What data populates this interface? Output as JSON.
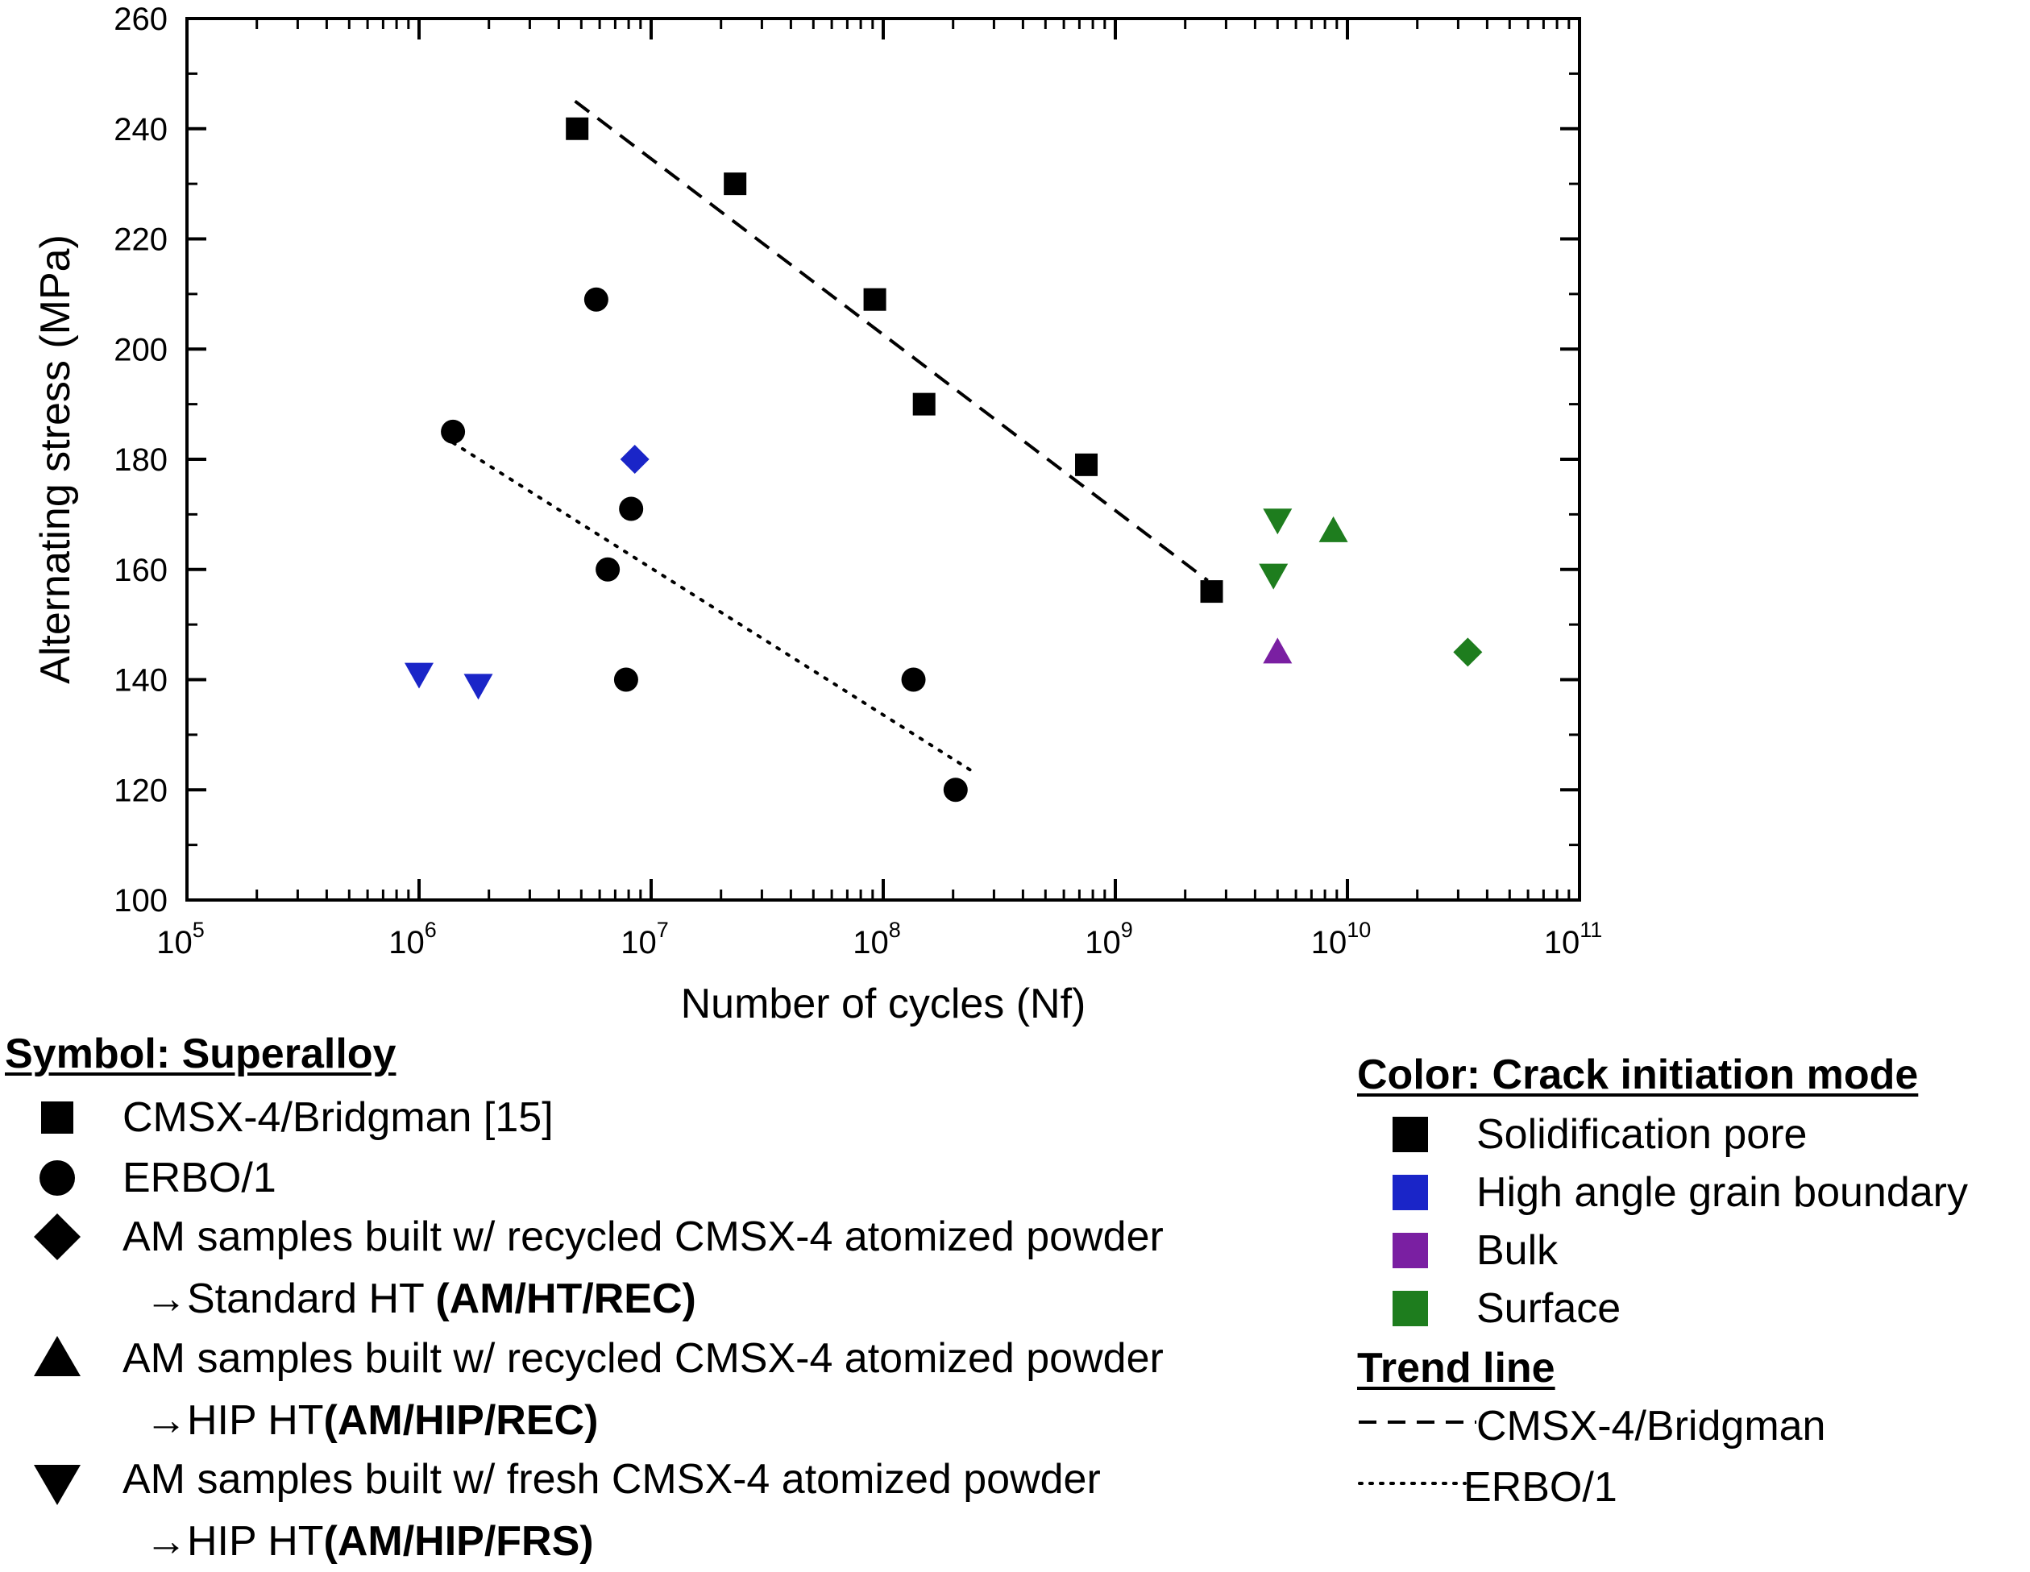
{
  "chart_data": {
    "type": "scatter",
    "xlabel": "Number of cycles (Nf)",
    "ylabel": "Alternating stress (MPa)",
    "xscale": "log",
    "xlim": [
      100000,
      100000000000
    ],
    "ylim": [
      100,
      260
    ],
    "x_tick_exponents": [
      5,
      6,
      7,
      8,
      9,
      10,
      11
    ],
    "x_tick_base": "10",
    "y_ticks": [
      100,
      120,
      140,
      160,
      180,
      200,
      220,
      240,
      260
    ],
    "grid": false,
    "colors": {
      "solidification_pore": "#000000",
      "high_angle_grain_boundary": "#1a25c8",
      "bulk": "#7a1fa2",
      "surface": "#1e7d1e"
    },
    "series": [
      {
        "name": "CMSX-4/Bridgman [15]",
        "marker": "square",
        "points": [
          {
            "x": 4800000,
            "y": 240,
            "mode": "solidification_pore"
          },
          {
            "x": 23000000,
            "y": 230,
            "mode": "solidification_pore"
          },
          {
            "x": 92000000,
            "y": 209,
            "mode": "solidification_pore"
          },
          {
            "x": 150000000,
            "y": 190,
            "mode": "solidification_pore"
          },
          {
            "x": 750000000,
            "y": 179,
            "mode": "solidification_pore"
          },
          {
            "x": 2600000000,
            "y": 156,
            "mode": "solidification_pore"
          }
        ]
      },
      {
        "name": "ERBO/1",
        "marker": "circle",
        "points": [
          {
            "x": 1400000,
            "y": 185,
            "mode": "solidification_pore"
          },
          {
            "x": 5800000,
            "y": 209,
            "mode": "solidification_pore"
          },
          {
            "x": 8200000,
            "y": 171,
            "mode": "solidification_pore"
          },
          {
            "x": 6500000,
            "y": 160,
            "mode": "solidification_pore"
          },
          {
            "x": 7800000,
            "y": 140,
            "mode": "solidification_pore"
          },
          {
            "x": 135000000,
            "y": 140,
            "mode": "solidification_pore"
          },
          {
            "x": 205000000,
            "y": 120,
            "mode": "solidification_pore"
          }
        ]
      },
      {
        "name": "AM/HT/REC",
        "marker": "diamond",
        "points": [
          {
            "x": 8500000,
            "y": 180,
            "mode": "high_angle_grain_boundary"
          },
          {
            "x": 33000000000,
            "y": 145,
            "mode": "surface"
          }
        ]
      },
      {
        "name": "AM/HIP/REC",
        "marker": "triangle-up",
        "points": [
          {
            "x": 5000000000,
            "y": 145,
            "mode": "bulk"
          },
          {
            "x": 8700000000,
            "y": 167,
            "mode": "surface"
          }
        ]
      },
      {
        "name": "AM/HIP/FRS",
        "marker": "triangle-down",
        "points": [
          {
            "x": 1000000,
            "y": 141,
            "mode": "high_angle_grain_boundary"
          },
          {
            "x": 1800000,
            "y": 139,
            "mode": "high_angle_grain_boundary"
          },
          {
            "x": 5000000000,
            "y": 169,
            "mode": "surface"
          },
          {
            "x": 4800000000,
            "y": 159,
            "mode": "surface"
          }
        ]
      }
    ],
    "trend_lines": [
      {
        "name": "CMSX-4/Bridgman",
        "style": "dashed",
        "x": [
          4700000,
          2500000000
        ],
        "y": [
          245,
          158
        ]
      },
      {
        "name": "ERBO/1",
        "style": "dotted",
        "x": [
          1400000,
          250000000
        ],
        "y": [
          183,
          123
        ]
      }
    ]
  },
  "legend": {
    "symbol_heading": "Symbol: Superalloy",
    "symbols": [
      {
        "icon": "square-icon",
        "label": "CMSX-4/Bridgman [15]"
      },
      {
        "icon": "circle-icon",
        "label": "ERBO/1"
      },
      {
        "icon": "diamond-icon",
        "label": "AM samples built w/ recycled CMSX-4 atomized powder",
        "sub_prefix": "→Standard HT ",
        "sub_bold": "(AM/HT/REC)"
      },
      {
        "icon": "triangle-up-icon",
        "label": "AM samples built w/ recycled CMSX-4 atomized powder",
        "sub_prefix": "→HIP HT",
        "sub_bold": "(AM/HIP/REC)"
      },
      {
        "icon": "triangle-down-icon",
        "label": "AM samples built w/ fresh CMSX-4 atomized powder",
        "sub_prefix": "→HIP HT",
        "sub_bold": "(AM/HIP/FRS)"
      }
    ],
    "color_heading": "Color: Crack initiation mode",
    "colors": [
      {
        "label": "Solidification pore",
        "color": "#000000"
      },
      {
        "label": "High angle grain boundary",
        "color": "#1a25c8"
      },
      {
        "label": "Bulk",
        "color": "#7a1fa2"
      },
      {
        "label": "Surface",
        "color": "#1e7d1e"
      }
    ],
    "trend_heading": "Trend line",
    "trends": [
      {
        "label": "CMSX-4/Bridgman",
        "style": "dashed"
      },
      {
        "label": "ERBO/1",
        "style": "dotted"
      }
    ]
  }
}
